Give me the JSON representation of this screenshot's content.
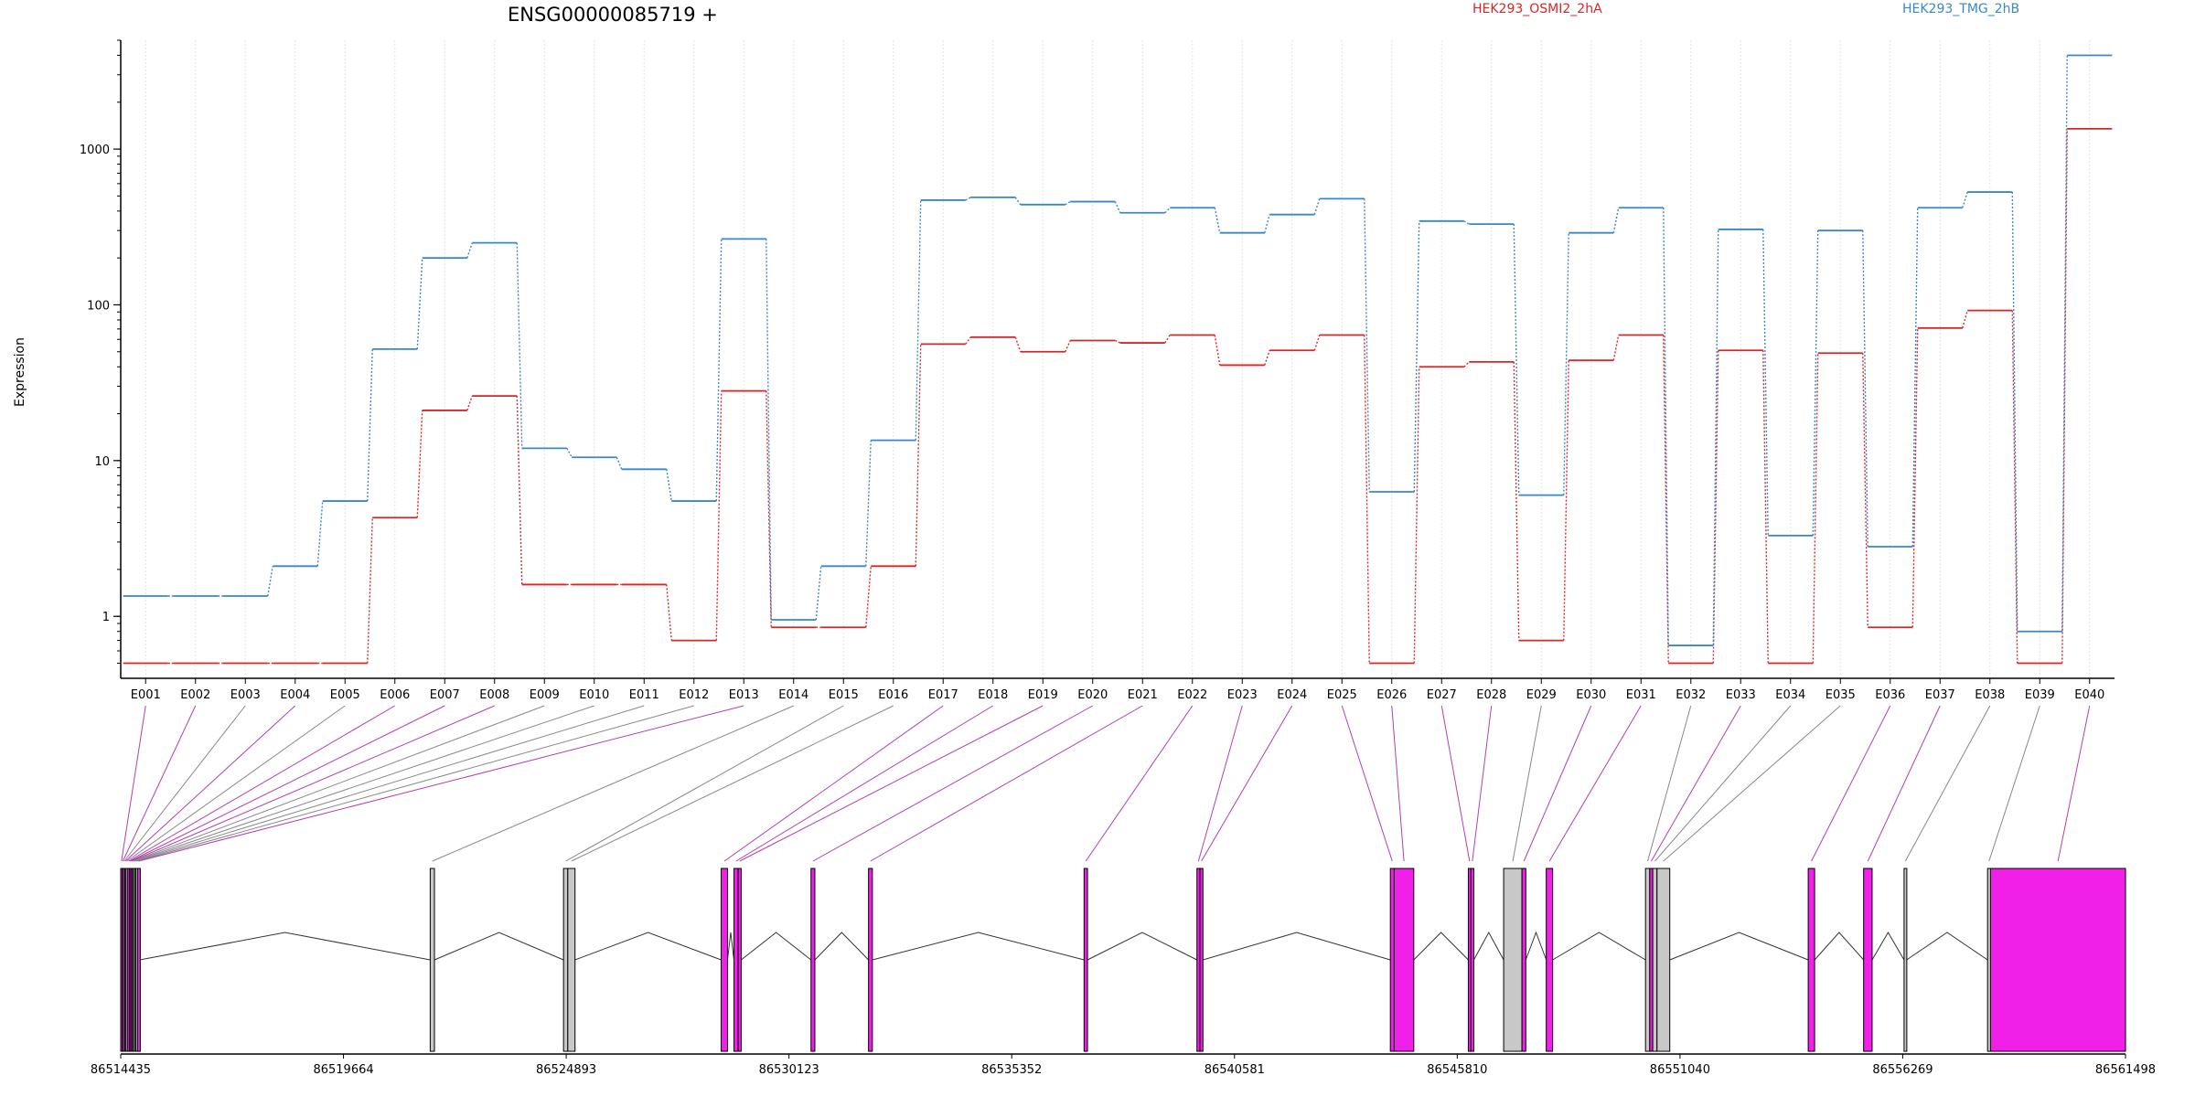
{
  "chart_data": {
    "type": "line",
    "title": "ENSG00000085719 +",
    "ylabel": "Expression",
    "xlabel": "",
    "yscale": "log",
    "ylim": [
      0.4,
      5000
    ],
    "yticks": [
      1,
      10,
      100,
      1000
    ],
    "ytick_labels": [
      "1",
      "10",
      "100",
      "1000"
    ],
    "grid": "vertical dotted",
    "legend_placement": "top",
    "categories": [
      "E001",
      "E002",
      "E003",
      "E004",
      "E005",
      "E006",
      "E007",
      "E008",
      "E009",
      "E010",
      "E011",
      "E012",
      "E013",
      "E014",
      "E015",
      "E016",
      "E017",
      "E018",
      "E019",
      "E020",
      "E021",
      "E022",
      "E023",
      "E024",
      "E025",
      "E026",
      "E027",
      "E028",
      "E029",
      "E030",
      "E031",
      "E032",
      "E033",
      "E034",
      "E035",
      "E036",
      "E037",
      "E038",
      "E039",
      "E040"
    ],
    "series": [
      {
        "name": "HEK293_OSMI2_2hA",
        "color": "#d62728",
        "values": [
          0.5,
          0.5,
          0.5,
          0.5,
          0.5,
          4.3,
          21,
          26,
          1.6,
          1.6,
          1.6,
          0.7,
          28,
          0.85,
          0.85,
          2.1,
          56,
          62,
          50,
          59,
          57,
          64,
          41,
          51,
          64,
          0.5,
          40,
          43,
          0.7,
          44,
          64,
          0.5,
          51,
          0.5,
          49,
          0.85,
          71,
          92,
          0.5,
          1350
        ]
      },
      {
        "name": "HEK293_TMG_2hB",
        "color": "#3a87c8",
        "values": [
          1.35,
          1.35,
          1.35,
          2.1,
          5.5,
          52,
          200,
          250,
          12,
          10.5,
          8.8,
          5.5,
          265,
          0.95,
          2.1,
          13.5,
          470,
          490,
          440,
          460,
          390,
          420,
          290,
          380,
          480,
          6.3,
          345,
          330,
          6.0,
          290,
          420,
          0.65,
          305,
          3.3,
          300,
          2.8,
          420,
          530,
          0.8,
          4000
        ]
      }
    ],
    "genome_axis": {
      "tick_labels": [
        "86514435",
        "86519664",
        "86524893",
        "86530123",
        "86535352",
        "86540581",
        "86545810",
        "86551040",
        "86556269",
        "86561498"
      ],
      "range": [
        86514435,
        86561498
      ]
    },
    "exons": [
      {
        "id": "E001",
        "start": 86514435,
        "end": 86514470,
        "highlight": true
      },
      {
        "id": "E002",
        "start": 86514470,
        "end": 86514500,
        "highlight": true
      },
      {
        "id": "E003",
        "start": 86514500,
        "end": 86514530,
        "highlight": false
      },
      {
        "id": "E004",
        "start": 86514530,
        "end": 86514560,
        "highlight": true
      },
      {
        "id": "E005",
        "start": 86514560,
        "end": 86514600,
        "highlight": false
      },
      {
        "id": "E006",
        "start": 86514600,
        "end": 86514640,
        "highlight": true
      },
      {
        "id": "E007",
        "start": 86514640,
        "end": 86514670,
        "highlight": true
      },
      {
        "id": "E008",
        "start": 86514670,
        "end": 86514700,
        "highlight": true
      },
      {
        "id": "E009",
        "start": 86514700,
        "end": 86514730,
        "highlight": false
      },
      {
        "id": "E010",
        "start": 86514730,
        "end": 86514760,
        "highlight": false
      },
      {
        "id": "E011",
        "start": 86514760,
        "end": 86514790,
        "highlight": false
      },
      {
        "id": "E012",
        "start": 86514790,
        "end": 86514830,
        "highlight": false
      },
      {
        "id": "E013",
        "start": 86514830,
        "end": 86514880,
        "highlight": true
      },
      {
        "id": "E014",
        "start": 86521700,
        "end": 86521800,
        "highlight": false
      },
      {
        "id": "E015",
        "start": 86524830,
        "end": 86524930,
        "highlight": false
      },
      {
        "id": "E016",
        "start": 86524930,
        "end": 86525100,
        "highlight": false
      },
      {
        "id": "E017",
        "start": 86528530,
        "end": 86528680,
        "highlight": true
      },
      {
        "id": "E018",
        "start": 86528830,
        "end": 86528930,
        "highlight": true
      },
      {
        "id": "E019",
        "start": 86528930,
        "end": 86529000,
        "highlight": true
      },
      {
        "id": "E020",
        "start": 86530640,
        "end": 86530730,
        "highlight": true
      },
      {
        "id": "E021",
        "start": 86531990,
        "end": 86532080,
        "highlight": true
      },
      {
        "id": "E022",
        "start": 86537050,
        "end": 86537130,
        "highlight": true
      },
      {
        "id": "E023",
        "start": 86539700,
        "end": 86539770,
        "highlight": true
      },
      {
        "id": "E024",
        "start": 86539770,
        "end": 86539840,
        "highlight": true
      },
      {
        "id": "E025",
        "start": 86544240,
        "end": 86544330,
        "highlight": true
      },
      {
        "id": "E026",
        "start": 86544330,
        "end": 86544790,
        "highlight": true
      },
      {
        "id": "E027",
        "start": 86546070,
        "end": 86546130,
        "highlight": true
      },
      {
        "id": "E028",
        "start": 86546130,
        "end": 86546200,
        "highlight": true
      },
      {
        "id": "E029",
        "start": 86546900,
        "end": 86547330,
        "highlight": false
      },
      {
        "id": "E030",
        "start": 86547330,
        "end": 86547420,
        "highlight": true
      },
      {
        "id": "E031",
        "start": 86547900,
        "end": 86548050,
        "highlight": true
      },
      {
        "id": "E032",
        "start": 86550230,
        "end": 86550330,
        "highlight": false
      },
      {
        "id": "E033",
        "start": 86550330,
        "end": 86550400,
        "highlight": true
      },
      {
        "id": "E034",
        "start": 86550400,
        "end": 86550500,
        "highlight": false
      },
      {
        "id": "E035",
        "start": 86550500,
        "end": 86550800,
        "highlight": false
      },
      {
        "id": "E036",
        "start": 86554050,
        "end": 86554200,
        "highlight": true
      },
      {
        "id": "E037",
        "start": 86555350,
        "end": 86555550,
        "highlight": true
      },
      {
        "id": "E038",
        "start": 86556300,
        "end": 86556360,
        "highlight": false
      },
      {
        "id": "E039",
        "start": 86558260,
        "end": 86558330,
        "highlight": false
      },
      {
        "id": "E040",
        "start": 86558330,
        "end": 86561498,
        "highlight": true
      }
    ],
    "exon_colors": {
      "highlight": "#f020e8",
      "normal": "#c8c8c8"
    }
  }
}
